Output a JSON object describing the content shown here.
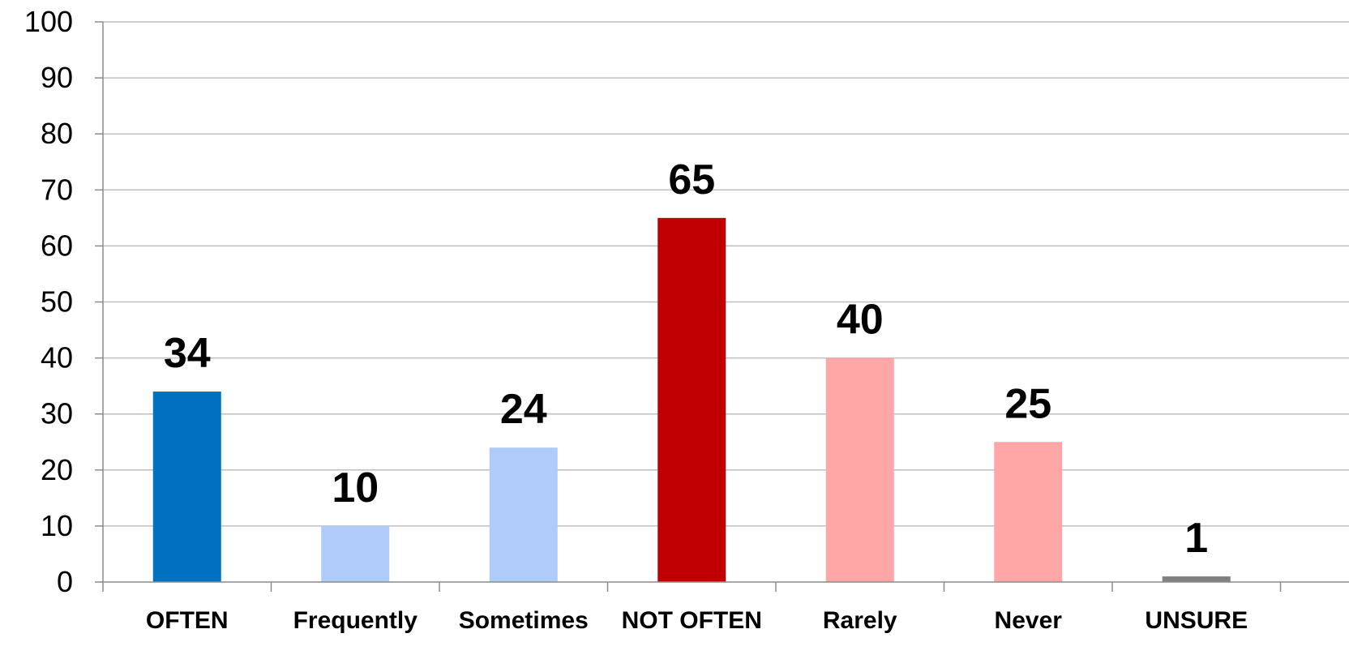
{
  "chart_data": {
    "type": "bar",
    "title": "",
    "xlabel": "",
    "ylabel": "",
    "categories": [
      "OFTEN",
      "Frequently",
      "Sometimes",
      "NOT OFTEN",
      "Rarely",
      "Never",
      "UNSURE"
    ],
    "values": [
      34,
      10,
      24,
      65,
      40,
      25,
      1
    ],
    "bar_colors": [
      "#0070c0",
      "#aecbfa",
      "#aecbfa",
      "#c00000",
      "#ffa6a6",
      "#ffa6a6",
      "#808080"
    ],
    "ylim": [
      0,
      100
    ],
    "y_ticks": [
      0,
      10,
      20,
      30,
      40,
      50,
      60,
      70,
      80,
      90,
      100
    ],
    "data_labels": [
      "34",
      "10",
      "24",
      "65",
      "40",
      "25",
      "1"
    ],
    "grid": true,
    "legend": "none"
  }
}
